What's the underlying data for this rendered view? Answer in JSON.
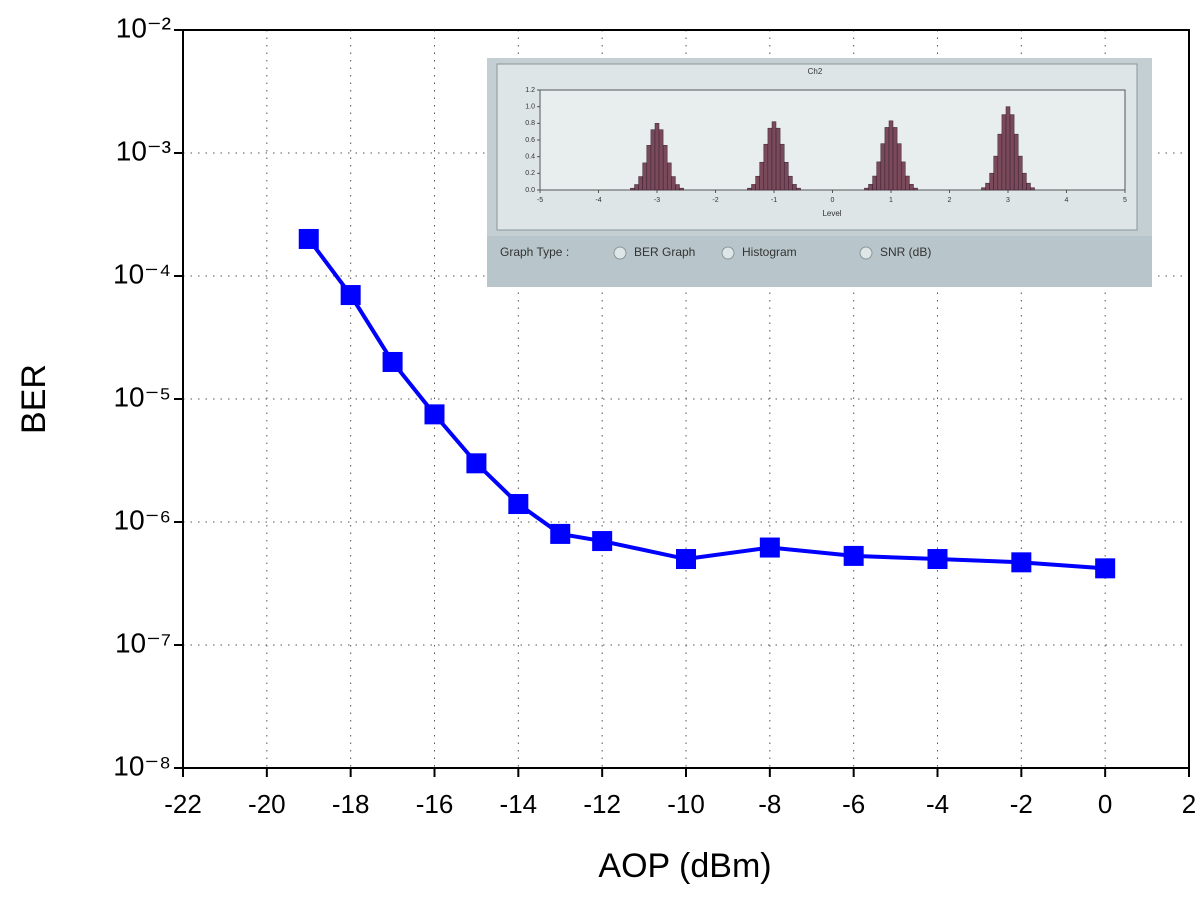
{
  "chart_data": {
    "type": "line",
    "xlabel": "AOP (dBm)",
    "ylabel": "BER",
    "log_y": true,
    "grid": true,
    "xlim": [
      -22,
      2
    ],
    "xticks": [
      -22,
      -20,
      -18,
      -16,
      -14,
      -12,
      -10,
      -8,
      -6,
      -4,
      -2,
      0,
      2
    ],
    "ylim": [
      1e-08,
      0.01
    ],
    "yticks": [
      {
        "value": 1e-08,
        "label": "10⁻⁸"
      },
      {
        "value": 1e-07,
        "label": "10⁻⁷"
      },
      {
        "value": 1e-06,
        "label": "10⁻⁶"
      },
      {
        "value": 1e-05,
        "label": "10⁻⁵"
      },
      {
        "value": 0.0001,
        "label": "10⁻⁴"
      },
      {
        "value": 0.001,
        "label": "10⁻³"
      },
      {
        "value": 0.01,
        "label": "10⁻²"
      }
    ],
    "series": [
      {
        "color": "#0000ff",
        "x": [
          -19,
          -18,
          -17,
          -16,
          -15,
          -14,
          -13,
          -12,
          -10,
          -8,
          -6,
          -4,
          -2,
          0
        ],
        "values": [
          0.0002,
          7e-05,
          2e-05,
          7.5e-06,
          3e-06,
          1.4e-06,
          8e-07,
          7e-07,
          5e-07,
          6.2e-07,
          5.3e-07,
          5e-07,
          4.7e-07,
          4.2e-07
        ]
      }
    ]
  },
  "inset": {
    "title": "Ch2",
    "xlabel": "Level",
    "graph_type_label": "Graph Type :",
    "options": [
      "BER Graph",
      "Histogram",
      "SNR (dB)"
    ],
    "xticks": [
      -5,
      -4,
      -3,
      -2,
      -1,
      0,
      1,
      2,
      3,
      4,
      5
    ],
    "yticks": [
      {
        "value": 0,
        "label": "0.0"
      },
      0.2,
      0.4,
      0.6,
      0.8,
      {
        "value": 1,
        "label": "1.0"
      },
      1.2
    ]
  }
}
